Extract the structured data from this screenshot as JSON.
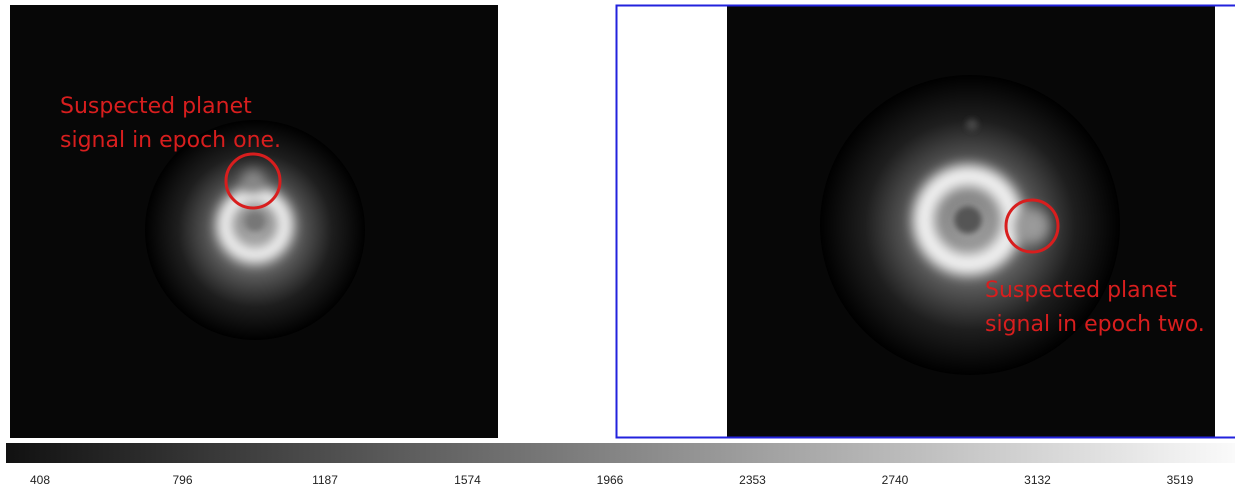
{
  "panels": [
    {
      "annotation": [
        "Suspected planet",
        "signal in epoch one."
      ]
    },
    {
      "annotation": [
        "Suspected planet",
        "signal in epoch two."
      ]
    }
  ],
  "colorbar": {
    "ticks": [
      "408",
      "796",
      "1187",
      "1574",
      "1966",
      "2353",
      "2740",
      "3132",
      "3519"
    ]
  }
}
